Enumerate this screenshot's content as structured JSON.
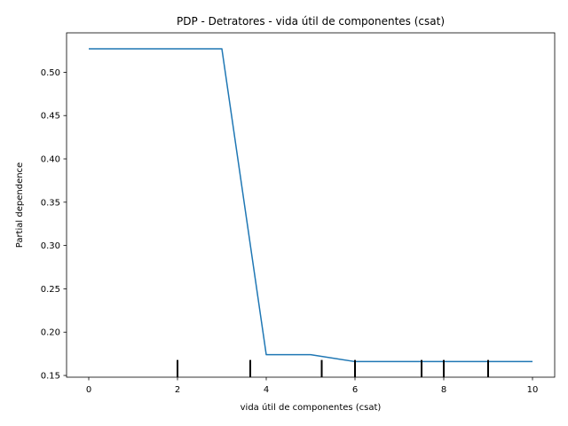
{
  "chart_data": {
    "type": "line",
    "title": "PDP - Detratores - vida útil de componentes (csat)",
    "xlabel": "vida útil de componentes (csat)",
    "ylabel": "Partial dependence",
    "xlim": [
      -0.5,
      10.5
    ],
    "ylim": [
      0.148,
      0.5455
    ],
    "xticks": [
      0,
      2,
      4,
      6,
      8,
      10
    ],
    "yticks": [
      0.15,
      0.2,
      0.25,
      0.3,
      0.35,
      0.4,
      0.45,
      0.5
    ],
    "ytick_labels": [
      "0.15",
      "0.20",
      "0.25",
      "0.30",
      "0.35",
      "0.40",
      "0.45",
      "0.50"
    ],
    "grid": false,
    "line_color": "#1f77b4",
    "series": [
      {
        "x": [
          0,
          1,
          2,
          3,
          4,
          5,
          6,
          7,
          8,
          9,
          10
        ],
        "y": [
          0.527,
          0.527,
          0.527,
          0.527,
          0.174,
          0.174,
          0.166,
          0.166,
          0.166,
          0.166,
          0.166
        ]
      }
    ],
    "rug": [
      2,
      3.64,
      5.25,
      6,
      7.5,
      8,
      9
    ]
  }
}
